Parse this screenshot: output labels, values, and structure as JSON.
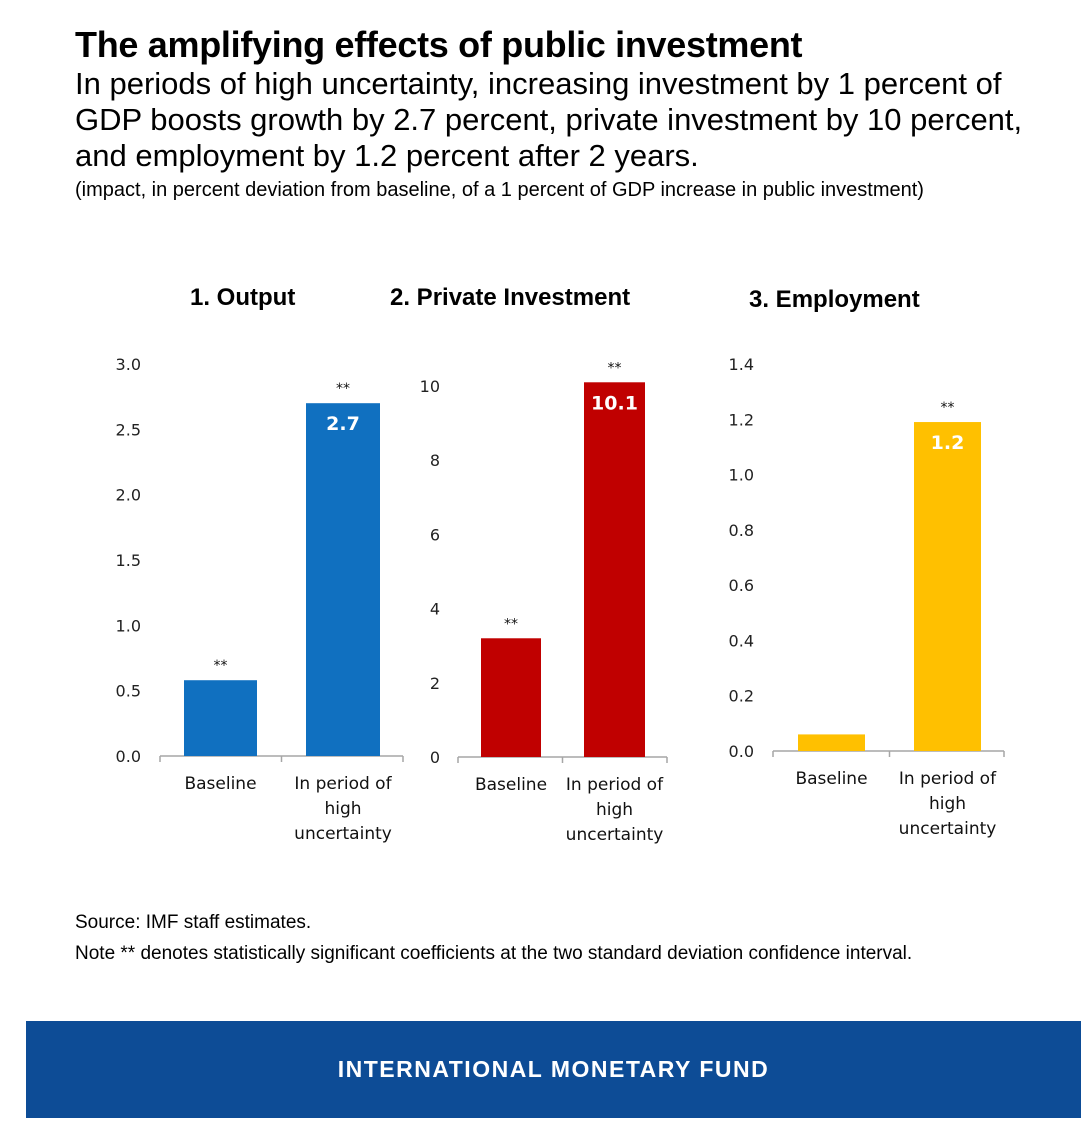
{
  "title": "The amplifying effects of public investment",
  "subtitle": "In periods of high uncertainty, increasing investment by 1 percent of GDP boosts growth by 2.7 percent, private investment by 10 percent, and employment by 1.2 percent after 2 years.",
  "note": "(impact, in percent deviation from baseline, of a 1 percent of GDP increase in public investment)",
  "source": "Source: IMF staff estimates.",
  "footnote": "Note  ** denotes statistically significant coefficients at the two standard deviation confidence interval.",
  "banner": "INTERNATIONAL MONETARY FUND",
  "chart_data": [
    {
      "type": "bar",
      "title": "1. Output",
      "categories": [
        "Baseline",
        "In period of high uncertainty"
      ],
      "category_lines": [
        [
          "Baseline"
        ],
        [
          "In period of",
          "high",
          "uncertainty"
        ]
      ],
      "values": [
        0.58,
        2.7
      ],
      "data_labels": [
        "",
        "2.7"
      ],
      "significance": [
        "**",
        "**"
      ],
      "ylim": [
        0,
        3.0
      ],
      "yticks": [
        "0.0",
        "0.5",
        "1.0",
        "1.5",
        "2.0",
        "2.5",
        "3.0"
      ],
      "ytick_values": [
        0,
        0.5,
        1.0,
        1.5,
        2.0,
        2.5,
        3.0
      ],
      "color": "#1070c0",
      "xlabel": "",
      "ylabel": ""
    },
    {
      "type": "bar",
      "title": "2. Private Investment",
      "categories": [
        "Baseline",
        "In period of high uncertainty"
      ],
      "category_lines": [
        [
          "Baseline"
        ],
        [
          "In period of",
          "high",
          "uncertainty"
        ]
      ],
      "values": [
        3.2,
        10.1
      ],
      "data_labels": [
        "",
        "10.1"
      ],
      "significance": [
        "**",
        "**"
      ],
      "ylim": [
        0,
        10
      ],
      "yticks": [
        "0",
        "2",
        "4",
        "6",
        "8",
        "10"
      ],
      "ytick_values": [
        0,
        2,
        4,
        6,
        8,
        10
      ],
      "color": "#c00000",
      "xlabel": "",
      "ylabel": ""
    },
    {
      "type": "bar",
      "title": "3. Employment",
      "categories": [
        "Baseline",
        "In period of high uncertainty"
      ],
      "category_lines": [
        [
          "Baseline"
        ],
        [
          "In period of",
          "high",
          "uncertainty"
        ]
      ],
      "values": [
        0.06,
        1.19
      ],
      "data_labels": [
        "",
        "1.2"
      ],
      "significance": [
        "",
        "**"
      ],
      "ylim": [
        0,
        1.4
      ],
      "yticks": [
        "0.0",
        "0.2",
        "0.4",
        "0.6",
        "0.8",
        "1.0",
        "1.2",
        "1.4"
      ],
      "ytick_values": [
        0,
        0.2,
        0.4,
        0.6,
        0.8,
        1.0,
        1.2,
        1.4
      ],
      "color": "#ffc000",
      "xlabel": "",
      "ylabel": ""
    }
  ]
}
